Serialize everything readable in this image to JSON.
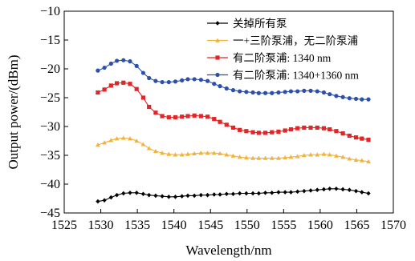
{
  "chart_data": {
    "type": "line",
    "xlabel": "Wavelength/nm",
    "ylabel": "Output power/(dBm)",
    "xlim": [
      1525,
      1570
    ],
    "ylim": [
      -45,
      -10
    ],
    "xticks": [
      1525,
      1530,
      1535,
      1540,
      1545,
      1550,
      1555,
      1560,
      1565,
      1570
    ],
    "yticks": [
      -45,
      -40,
      -35,
      -30,
      -25,
      -20,
      -15,
      -10
    ],
    "grid": false,
    "legend_position": "top-right",
    "x": [
      1529.6,
      1530.5,
      1531.4,
      1532.2,
      1533.1,
      1534.0,
      1534.9,
      1535.8,
      1536.6,
      1537.5,
      1538.4,
      1539.3,
      1540.2,
      1541.1,
      1541.9,
      1542.8,
      1543.7,
      1544.6,
      1545.5,
      1546.3,
      1547.2,
      1548.1,
      1549.0,
      1549.9,
      1550.8,
      1551.6,
      1552.5,
      1553.4,
      1554.3,
      1555.2,
      1556.0,
      1556.9,
      1557.8,
      1558.7,
      1559.6,
      1560.5,
      1561.3,
      1562.2,
      1563.1,
      1564.0,
      1564.9,
      1565.7,
      1566.6
    ],
    "series": [
      {
        "name": "关掉所有泵",
        "color": "#000000",
        "marker": "diamond",
        "values": [
          -43.0,
          -42.8,
          -42.3,
          -41.9,
          -41.6,
          -41.5,
          -41.5,
          -41.7,
          -41.9,
          -42.0,
          -42.1,
          -42.2,
          -42.2,
          -42.1,
          -42.0,
          -42.0,
          -41.9,
          -41.9,
          -41.8,
          -41.8,
          -41.7,
          -41.7,
          -41.6,
          -41.6,
          -41.6,
          -41.6,
          -41.5,
          -41.5,
          -41.4,
          -41.4,
          -41.4,
          -41.3,
          -41.2,
          -41.1,
          -41.0,
          -40.9,
          -40.8,
          -40.8,
          -40.9,
          -41.0,
          -41.2,
          -41.4,
          -41.6
        ]
      },
      {
        "name": "一+三阶泵浦，无二阶泵浦",
        "color": "#f2b33d",
        "marker": "triangle",
        "values": [
          -33.2,
          -32.8,
          -32.4,
          -32.1,
          -32.0,
          -32.1,
          -32.5,
          -33.1,
          -33.8,
          -34.3,
          -34.6,
          -34.8,
          -34.9,
          -34.9,
          -34.8,
          -34.7,
          -34.6,
          -34.6,
          -34.6,
          -34.7,
          -34.9,
          -35.1,
          -35.3,
          -35.4,
          -35.5,
          -35.5,
          -35.5,
          -35.5,
          -35.5,
          -35.4,
          -35.3,
          -35.2,
          -35.0,
          -34.9,
          -34.9,
          -34.8,
          -34.9,
          -35.1,
          -35.3,
          -35.6,
          -35.8,
          -35.9,
          -36.1
        ]
      },
      {
        "name": "有二阶泵浦: 1340 nm",
        "color": "#e02626",
        "marker": "square",
        "values": [
          -24.1,
          -23.6,
          -22.9,
          -22.5,
          -22.4,
          -22.6,
          -23.5,
          -25.0,
          -26.6,
          -27.6,
          -28.2,
          -28.4,
          -28.4,
          -28.3,
          -28.2,
          -28.1,
          -28.2,
          -28.3,
          -28.7,
          -29.2,
          -29.7,
          -30.2,
          -30.6,
          -30.8,
          -31.0,
          -31.1,
          -31.1,
          -31.0,
          -30.9,
          -30.7,
          -30.5,
          -30.3,
          -30.2,
          -30.2,
          -30.2,
          -30.3,
          -30.5,
          -30.8,
          -31.2,
          -31.6,
          -31.9,
          -32.1,
          -32.3
        ]
      },
      {
        "name": "有二阶泵浦: 1340+1360 nm",
        "color": "#2c4fae",
        "marker": "circle",
        "values": [
          -20.3,
          -19.8,
          -19.1,
          -18.6,
          -18.5,
          -18.7,
          -19.5,
          -20.7,
          -21.6,
          -22.1,
          -22.3,
          -22.3,
          -22.2,
          -22.0,
          -21.8,
          -21.8,
          -21.9,
          -22.1,
          -22.6,
          -23.0,
          -23.4,
          -23.7,
          -23.9,
          -24.0,
          -24.1,
          -24.2,
          -24.2,
          -24.2,
          -24.1,
          -24.0,
          -23.9,
          -23.9,
          -23.8,
          -23.8,
          -23.9,
          -24.1,
          -24.4,
          -24.7,
          -24.9,
          -25.1,
          -25.2,
          -25.3,
          -25.3
        ]
      }
    ]
  }
}
